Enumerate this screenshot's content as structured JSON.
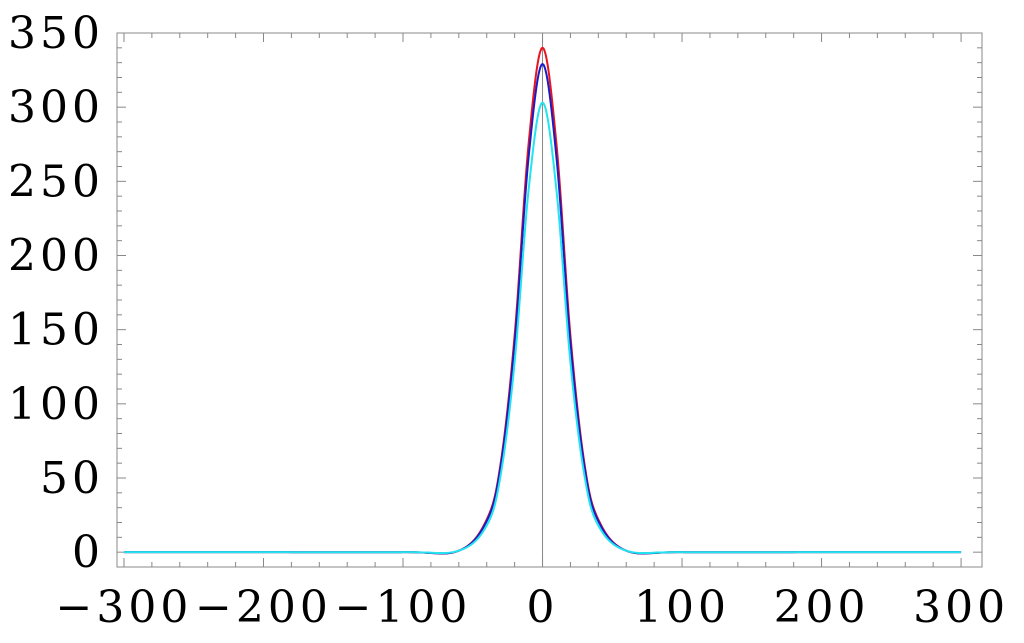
{
  "chart_data": {
    "type": "line",
    "title": "",
    "xlabel": "",
    "ylabel": "",
    "xlim": [
      -305,
      315
    ],
    "ylim": [
      -10,
      350
    ],
    "x_ticks": [
      -300,
      -200,
      -100,
      0,
      100,
      200,
      300
    ],
    "x_tick_labels": [
      "−300",
      "−200",
      "−100",
      "0",
      "100",
      "200",
      "300"
    ],
    "y_ticks": [
      0,
      50,
      100,
      150,
      200,
      250,
      300,
      350
    ],
    "y_tick_labels": [
      "0",
      "50",
      "100",
      "150",
      "200",
      "250",
      "300",
      "350"
    ],
    "vertical_reference_x": 0,
    "grid": false,
    "legend": "none",
    "series": [
      {
        "color": "#e8141f",
        "x": [
          -300,
          -200,
          -100,
          -60,
          -40,
          -30,
          -20,
          -10,
          0,
          10,
          20,
          30,
          40,
          60,
          100,
          200,
          300
        ],
        "y": [
          0,
          0,
          0,
          1,
          22,
          60,
          146,
          275,
          340,
          275,
          146,
          60,
          22,
          1,
          0,
          0,
          0
        ]
      },
      {
        "color": "#1c1cc4",
        "x": [
          -300,
          -200,
          -100,
          -60,
          -40,
          -30,
          -20,
          -10,
          0,
          10,
          20,
          30,
          40,
          60,
          100,
          200,
          300
        ],
        "y": [
          0,
          0,
          0,
          1,
          21,
          58,
          141,
          266,
          329,
          266,
          141,
          58,
          21,
          1,
          0,
          0,
          0
        ]
      },
      {
        "color": "#22e3ee",
        "x": [
          -300,
          -200,
          -100,
          -60,
          -40,
          -30,
          -20,
          -10,
          0,
          10,
          20,
          30,
          40,
          60,
          100,
          200,
          300
        ],
        "y": [
          0,
          0,
          0,
          1,
          18,
          52,
          128,
          244,
          303,
          244,
          128,
          52,
          18,
          1,
          0,
          0,
          0
        ]
      }
    ]
  }
}
